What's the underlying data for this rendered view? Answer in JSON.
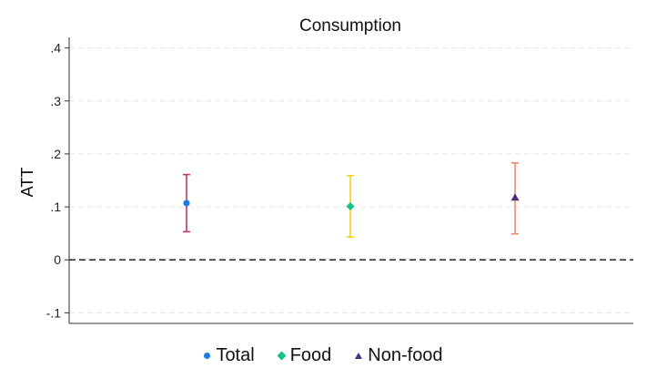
{
  "chart_data": {
    "type": "errorbar",
    "title": "Consumption",
    "ylabel": "ATT",
    "xlabel": "",
    "ylim": [
      -0.12,
      0.42
    ],
    "yticks": [
      {
        "value": -0.1,
        "label": "-.1"
      },
      {
        "value": 0,
        "label": "0"
      },
      {
        "value": 0.1,
        "label": ".1"
      },
      {
        "value": 0.2,
        "label": ".2"
      },
      {
        "value": 0.3,
        "label": ".3"
      },
      {
        "value": 0.4,
        "label": ".4"
      }
    ],
    "grid": true,
    "reference_line": {
      "y": 0,
      "style": "dashed"
    },
    "legend_position": "bottom",
    "series": [
      {
        "name": "Total",
        "estimate": 0.107,
        "ci_low": 0.053,
        "ci_high": 0.161,
        "marker": "circle",
        "marker_color": "#1f7be0",
        "bar_color": "#c2366c"
      },
      {
        "name": "Food",
        "estimate": 0.101,
        "ci_low": 0.043,
        "ci_high": 0.159,
        "marker": "diamond",
        "marker_color": "#17c281",
        "bar_color": "#f2d21b"
      },
      {
        "name": "Non-food",
        "estimate": 0.117,
        "ci_low": 0.049,
        "ci_high": 0.183,
        "marker": "triangle",
        "marker_color": "#4b2d7f",
        "bar_color": "#f08a6c"
      }
    ]
  }
}
